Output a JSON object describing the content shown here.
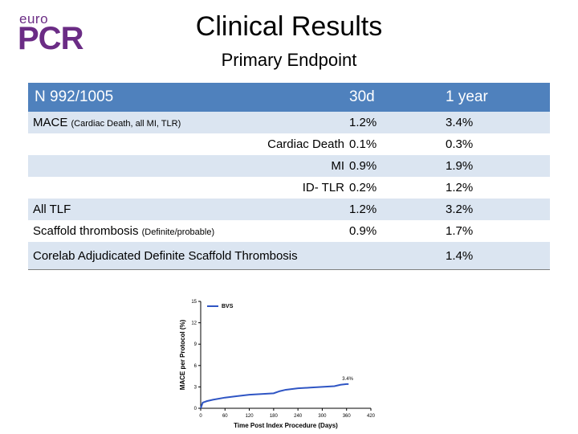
{
  "logo": {
    "prefix": "euro",
    "name": "PCR",
    "color": "#6b2c85"
  },
  "header": {
    "title": "Clinical Results",
    "subtitle": "Primary Endpoint"
  },
  "table": {
    "head": {
      "label": "N 992/1005",
      "col1": "30d",
      "col2": "1 year"
    },
    "rows": [
      {
        "label": "MACE",
        "note": "(Cardiac Death, all MI, TLR)",
        "sub": "",
        "d30": "1.2%",
        "y1": "3.4%"
      },
      {
        "label": "",
        "note": "",
        "sub": "Cardiac Death",
        "d30": "0.1%",
        "y1": "0.3%"
      },
      {
        "label": "",
        "note": "",
        "sub": "MI",
        "d30": "0.9%",
        "y1": "1.9%"
      },
      {
        "label": "",
        "note": "",
        "sub": "ID- TLR",
        "d30": "0.2%",
        "y1": "1.2%"
      },
      {
        "label": "All TLF",
        "note": "",
        "sub": "",
        "d30": "1.2%",
        "y1": "3.2%"
      },
      {
        "label": "Scaffold  thrombosis",
        "note": "(Definite/probable)",
        "sub": "",
        "d30": "0.9%",
        "y1": "1.7%"
      },
      {
        "label": "Corelab Adjudicated Definite Scaffold Thrombosis",
        "note": "",
        "sub": "",
        "d30": "",
        "y1": "1.4%"
      }
    ]
  },
  "chart_data": {
    "type": "line",
    "title": "",
    "xlabel": "Time Post Index Procedure (Days)",
    "ylabel": "MACE per Protocol (%)",
    "xlim": [
      0,
      420
    ],
    "ylim": [
      0,
      15
    ],
    "xticks": [
      "0",
      "60",
      "120",
      "180",
      "240",
      "300",
      "360",
      "420"
    ],
    "yticks": [
      "0",
      "3",
      "6",
      "9",
      "12",
      "15"
    ],
    "legend": "BVS",
    "annotation": "3.4%",
    "series": [
      {
        "name": "BVS",
        "color": "#2f55c4",
        "x": [
          0,
          5,
          15,
          30,
          60,
          90,
          120,
          150,
          180,
          195,
          210,
          240,
          270,
          300,
          330,
          345,
          360,
          365
        ],
        "y": [
          0,
          0.8,
          1.0,
          1.2,
          1.5,
          1.7,
          1.9,
          2.0,
          2.1,
          2.4,
          2.6,
          2.8,
          2.9,
          3.0,
          3.1,
          3.3,
          3.4,
          3.4
        ]
      }
    ]
  }
}
